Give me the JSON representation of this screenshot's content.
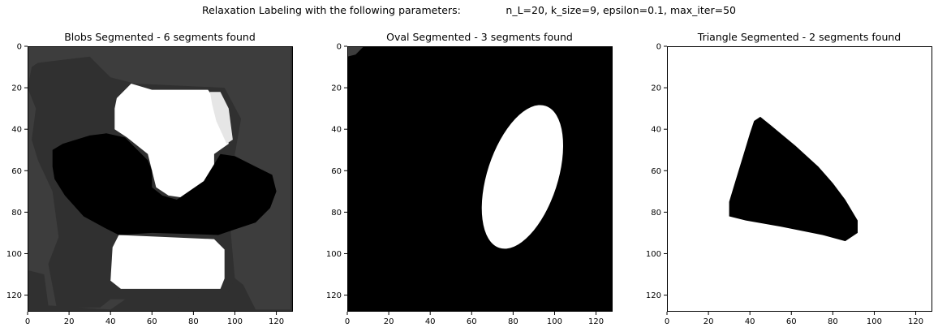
{
  "suptitle": "Relaxation Labeling with the following parameters:              n_L=20, k_size=9, epsilon=0.1, max_iter=50",
  "colors": {
    "black": "#000000",
    "dark_gray": "#303030",
    "mid_gray": "#3d3d3d",
    "light_gray": "#e6e6e6",
    "white": "#ffffff"
  },
  "chart_data": [
    {
      "type": "image",
      "title": "Blobs Segmented - 6 segments found",
      "xlim": [
        0,
        128
      ],
      "ylim": [
        128,
        0
      ],
      "x_ticks": [
        0,
        20,
        40,
        60,
        80,
        100,
        120
      ],
      "y_ticks": [
        0,
        20,
        40,
        60,
        80,
        100,
        120
      ],
      "segments": 6,
      "background": "#303030",
      "regions": [
        {
          "label": "outer-gray",
          "color": "#3d3d3d",
          "points": [
            [
              0,
              0
            ],
            [
              127,
              0
            ],
            [
              127,
              127
            ],
            [
              110,
              127
            ],
            [
              104,
              115
            ],
            [
              95,
              108
            ],
            [
              90,
              118
            ],
            [
              50,
              120
            ],
            [
              40,
              127
            ],
            [
              10,
              125
            ],
            [
              8,
              110
            ],
            [
              0,
              108
            ]
          ]
        },
        {
          "label": "inner-gray",
          "color": "#303030",
          "points": [
            [
              5,
              8
            ],
            [
              30,
              5
            ],
            [
              40,
              15
            ],
            [
              52,
              18
            ],
            [
              95,
              20
            ],
            [
              103,
              35
            ],
            [
              100,
              52
            ],
            [
              98,
              90
            ],
            [
              100,
              112
            ],
            [
              96,
              120
            ],
            [
              55,
              122
            ],
            [
              40,
              122
            ],
            [
              35,
              126
            ],
            [
              14,
              126
            ],
            [
              10,
              105
            ],
            [
              15,
              92
            ],
            [
              12,
              70
            ],
            [
              5,
              55
            ],
            [
              2,
              45
            ],
            [
              4,
              30
            ],
            [
              0,
              20
            ],
            [
              2,
              10
            ]
          ]
        },
        {
          "label": "upper-white",
          "color": "#ffffff",
          "points": [
            [
              43,
              25
            ],
            [
              50,
              18
            ],
            [
              60,
              21
            ],
            [
              87,
              21
            ],
            [
              95,
              32
            ],
            [
              97,
              47
            ],
            [
              90,
              52
            ],
            [
              90,
              62
            ],
            [
              83,
              68
            ],
            [
              75,
              73
            ],
            [
              68,
              72
            ],
            [
              62,
              68
            ],
            [
              60,
              60
            ],
            [
              58,
              52
            ],
            [
              48,
              44
            ],
            [
              42,
              40
            ],
            [
              42,
              30
            ]
          ]
        },
        {
          "label": "upper-light-gray",
          "color": "#e6e6e6",
          "points": [
            [
              88,
              22
            ],
            [
              93,
              22
            ],
            [
              97,
              30
            ],
            [
              99,
              45
            ],
            [
              96,
              47
            ],
            [
              91,
              36
            ],
            [
              89,
              28
            ]
          ]
        },
        {
          "label": "lower-white",
          "color": "#ffffff",
          "points": [
            [
              44,
              91
            ],
            [
              90,
              93
            ],
            [
              95,
              98
            ],
            [
              95,
              112
            ],
            [
              93,
              117
            ],
            [
              45,
              117
            ],
            [
              40,
              113
            ],
            [
              41,
              97
            ]
          ]
        },
        {
          "label": "black-segment",
          "color": "#000000",
          "points": [
            [
              12,
              50
            ],
            [
              17,
              47
            ],
            [
              30,
              43
            ],
            [
              38,
              42
            ],
            [
              47,
              44
            ],
            [
              53,
              50
            ],
            [
              58,
              55
            ],
            [
              60,
              60
            ],
            [
              60,
              68
            ],
            [
              65,
              72
            ],
            [
              72,
              74
            ],
            [
              85,
              65
            ],
            [
              93,
              52
            ],
            [
              100,
              53
            ],
            [
              110,
              58
            ],
            [
              118,
              62
            ],
            [
              120,
              70
            ],
            [
              117,
              78
            ],
            [
              110,
              85
            ],
            [
              101,
              88
            ],
            [
              92,
              91
            ],
            [
              60,
              90
            ],
            [
              44,
              91
            ],
            [
              38,
              88
            ],
            [
              27,
              82
            ],
            [
              18,
              72
            ],
            [
              13,
              64
            ],
            [
              12,
              58
            ]
          ]
        }
      ]
    },
    {
      "type": "image",
      "title": "Oval Segmented - 3 segments found",
      "xlim": [
        0,
        128
      ],
      "ylim": [
        128,
        0
      ],
      "x_ticks": [
        0,
        20,
        40,
        60,
        80,
        100,
        120
      ],
      "y_ticks": [
        0,
        20,
        40,
        60,
        80,
        100,
        120
      ],
      "segments": 3,
      "background": "#000000",
      "regions": [
        {
          "label": "corner-gray",
          "color": "#3d3d3d",
          "points": [
            [
              0,
              0
            ],
            [
              8,
              0
            ],
            [
              4,
              4
            ],
            [
              0,
              5
            ]
          ]
        },
        {
          "label": "oval",
          "color": "#ffffff",
          "cx": 84.5,
          "cy": 63,
          "rx": 17,
          "ry": 36,
          "rotation": 18
        }
      ]
    },
    {
      "type": "image",
      "title": "Triangle Segmented - 2 segments found",
      "xlim": [
        0,
        128
      ],
      "ylim": [
        128,
        0
      ],
      "x_ticks": [
        0,
        20,
        40,
        60,
        80,
        100,
        120
      ],
      "y_ticks": [
        0,
        20,
        40,
        60,
        80,
        100,
        120
      ],
      "segments": 2,
      "background": "#ffffff",
      "regions": [
        {
          "label": "triangle",
          "color": "#000000",
          "points": [
            [
              42,
              36
            ],
            [
              45,
              34
            ],
            [
              50,
              38
            ],
            [
              62,
              48
            ],
            [
              73,
              58
            ],
            [
              80,
              66
            ],
            [
              86,
              74
            ],
            [
              92,
              84
            ],
            [
              92,
              90
            ],
            [
              86,
              94
            ],
            [
              75,
              91
            ],
            [
              55,
              87
            ],
            [
              38,
              84
            ],
            [
              30,
              82
            ],
            [
              30,
              75
            ],
            [
              33,
              65
            ],
            [
              37,
              52
            ],
            [
              40,
              42
            ]
          ]
        }
      ]
    }
  ]
}
